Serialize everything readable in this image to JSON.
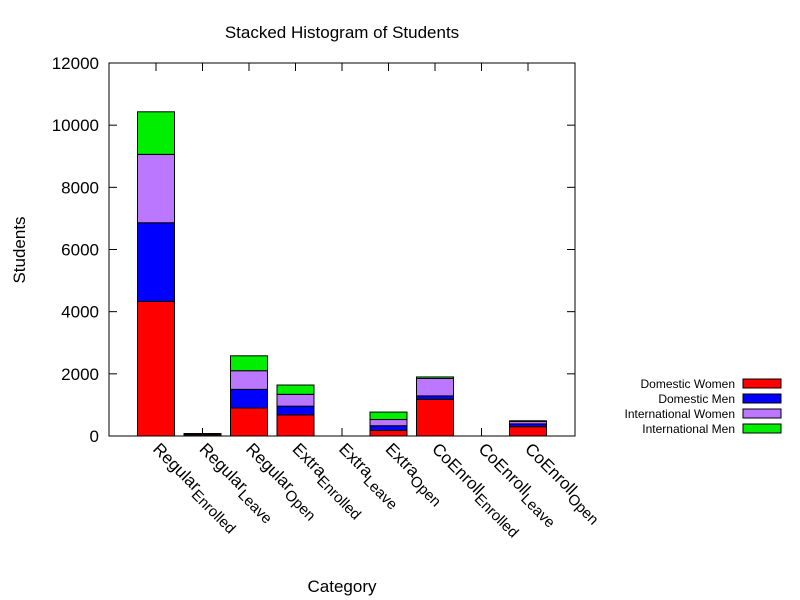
{
  "chart_data": {
    "type": "bar",
    "stacked": true,
    "title": "Stacked Histogram of Students",
    "xlabel": "Category",
    "ylabel": "Students",
    "ylim": [
      0,
      12000
    ],
    "yticks": [
      "0",
      "2000",
      "4000",
      "6000",
      "8000",
      "10000",
      "12000"
    ],
    "ytick_values": [
      0,
      2000,
      4000,
      6000,
      8000,
      10000,
      12000
    ],
    "categories": [
      {
        "base": "Regular",
        "sub": "Enrolled"
      },
      {
        "base": "Regular",
        "sub": "Leave"
      },
      {
        "base": "Regular",
        "sub": "Open"
      },
      {
        "base": "Extra",
        "sub": "Enrolled"
      },
      {
        "base": "Extra",
        "sub": "Leave"
      },
      {
        "base": "Extra",
        "sub": "Open"
      },
      {
        "base": "CoEnroll",
        "sub": "Enrolled"
      },
      {
        "base": "CoEnroll",
        "sub": "Leave"
      },
      {
        "base": "CoEnroll",
        "sub": "Open"
      }
    ],
    "series": [
      {
        "name": "Domestic Women",
        "color": "#ff0000",
        "values": [
          4330,
          40,
          900,
          680,
          0,
          180,
          1180,
          0,
          300
        ]
      },
      {
        "name": "Domestic Men",
        "color": "#0000ff",
        "values": [
          2530,
          20,
          600,
          280,
          0,
          150,
          110,
          0,
          90
        ]
      },
      {
        "name": "International Women",
        "color": "#bb77ff",
        "values": [
          2200,
          10,
          600,
          380,
          0,
          200,
          560,
          0,
          80
        ]
      },
      {
        "name": "International Men",
        "color": "#00ee00",
        "values": [
          1370,
          10,
          480,
          300,
          0,
          240,
          50,
          0,
          20
        ]
      }
    ],
    "legend_position": "right",
    "grid": false
  }
}
